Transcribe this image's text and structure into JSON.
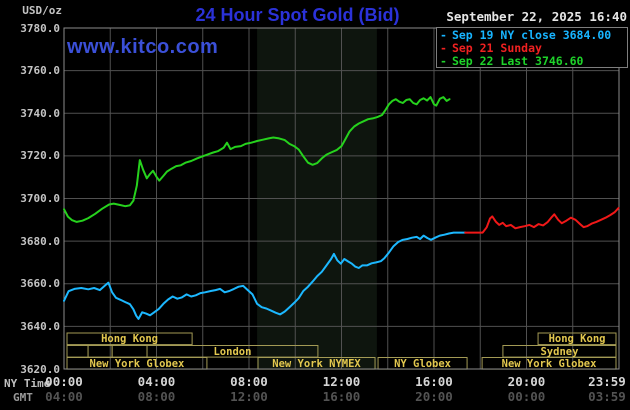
{
  "header": {
    "unit_label": "USD/oz",
    "title": "24 Hour Spot Gold (Bid)",
    "datetime": "September 22, 2025 16:40",
    "watermark": "www.kitco.com"
  },
  "legend": {
    "marker": "-",
    "items": [
      {
        "label": "Sep 19 NY close 3684.00",
        "color": "#17b4ff"
      },
      {
        "label": "Sep 21 Sunday",
        "color": "#f02121"
      },
      {
        "label": "Sep 22 Last 3746.60",
        "color": "#1ed32a"
      }
    ]
  },
  "axes": {
    "ny_axis_name": "NY Time",
    "gmt_axis_name": "GMT",
    "y_labels": [
      "3780.0",
      "3760.0",
      "3740.0",
      "3720.0",
      "3700.0",
      "3680.0",
      "3660.0",
      "3640.0",
      "3620.0"
    ],
    "ticks": [
      {
        "t": 0,
        "ny": "00:00",
        "gmt": "04:00"
      },
      {
        "t": 4,
        "ny": "04:00",
        "gmt": "08:00"
      },
      {
        "t": 8,
        "ny": "08:00",
        "gmt": "12:00"
      },
      {
        "t": 12,
        "ny": "12:00",
        "gmt": "16:00"
      },
      {
        "t": 16,
        "ny": "16:00",
        "gmt": "20:00"
      },
      {
        "t": 20,
        "ny": "20:00",
        "gmt": "00:00"
      },
      {
        "t": 23.983,
        "ny": "23:59",
        "gmt": "03:59"
      }
    ]
  },
  "sessions": {
    "rows": [
      {
        "name": "asia-row",
        "boxes": [
          {
            "label": "Hong Kong",
            "start": 0.13,
            "end": 5.54
          },
          {
            "label": "Hong Kong",
            "start": 20.5,
            "end": 23.87
          }
        ]
      },
      {
        "name": "europe-row",
        "boxes": [
          {
            "label": "",
            "start": 0.13,
            "end": 1.04
          },
          {
            "label": "",
            "start": 1.04,
            "end": 2.08
          },
          {
            "label": "",
            "start": 2.08,
            "end": 3.59
          },
          {
            "label": "London",
            "start": 3.59,
            "end": 10.98
          },
          {
            "label": "Sydney",
            "start": 18.98,
            "end": 23.87
          }
        ]
      },
      {
        "name": "america-row",
        "boxes": [
          {
            "label": "New York Globex",
            "start": 0.13,
            "end": 6.18
          },
          {
            "label": "New York NYMEX",
            "start": 8.39,
            "end": 13.45
          },
          {
            "label": "NY Globex",
            "start": 13.58,
            "end": 17.43
          },
          {
            "label": "New York Globex",
            "start": 18.08,
            "end": 23.87
          }
        ]
      }
    ]
  },
  "chart_data": {
    "type": "line",
    "title": "24 Hour Spot Gold (Bid)",
    "xlabel": "NY Time",
    "ylabel": "USD/oz",
    "x_range_hours": [
      0,
      24
    ],
    "ylim": [
      3620,
      3780
    ],
    "y_step": 20,
    "x_gridline_step_hours": 2,
    "grid": true,
    "legend_position": "top-right",
    "nymex_band": {
      "hours": [
        8.35,
        13.53
      ],
      "color": "#0e150e"
    },
    "series": [
      {
        "name": "Sep 19 NY close",
        "color": "#1cb8ff",
        "points": [
          [
            0,
            3652
          ],
          [
            0.2,
            3656.5
          ],
          [
            0.45,
            3657.6
          ],
          [
            0.75,
            3658
          ],
          [
            1.05,
            3657.4
          ],
          [
            1.3,
            3658
          ],
          [
            1.55,
            3657
          ],
          [
            1.8,
            3659.4
          ],
          [
            1.92,
            3660.5
          ],
          [
            2.08,
            3656
          ],
          [
            2.25,
            3653.4
          ],
          [
            2.45,
            3652.4
          ],
          [
            2.65,
            3651.4
          ],
          [
            2.85,
            3650.4
          ],
          [
            3,
            3648
          ],
          [
            3.12,
            3645
          ],
          [
            3.22,
            3643.5
          ],
          [
            3.38,
            3646.6
          ],
          [
            3.55,
            3646
          ],
          [
            3.72,
            3645.2
          ],
          [
            3.9,
            3646.6
          ],
          [
            4.1,
            3648.2
          ],
          [
            4.3,
            3650.6
          ],
          [
            4.5,
            3652.6
          ],
          [
            4.7,
            3654
          ],
          [
            4.9,
            3653
          ],
          [
            5.1,
            3653.6
          ],
          [
            5.3,
            3655
          ],
          [
            5.5,
            3654
          ],
          [
            5.7,
            3654.6
          ],
          [
            5.9,
            3655.6
          ],
          [
            6.1,
            3656
          ],
          [
            6.35,
            3656.6
          ],
          [
            6.55,
            3657
          ],
          [
            6.75,
            3657.6
          ],
          [
            6.95,
            3656
          ],
          [
            7.15,
            3656.6
          ],
          [
            7.35,
            3657.6
          ],
          [
            7.55,
            3658.6
          ],
          [
            7.75,
            3659
          ],
          [
            7.95,
            3657
          ],
          [
            8.15,
            3655
          ],
          [
            8.35,
            3650.6
          ],
          [
            8.55,
            3649
          ],
          [
            8.75,
            3648.4
          ],
          [
            8.95,
            3647.4
          ],
          [
            9.15,
            3646.4
          ],
          [
            9.35,
            3645.6
          ],
          [
            9.55,
            3647
          ],
          [
            9.75,
            3649
          ],
          [
            9.95,
            3651
          ],
          [
            10.15,
            3653.2
          ],
          [
            10.35,
            3656.6
          ],
          [
            10.55,
            3658.6
          ],
          [
            10.75,
            3661
          ],
          [
            10.95,
            3663.6
          ],
          [
            11.15,
            3665.6
          ],
          [
            11.35,
            3668.6
          ],
          [
            11.55,
            3671.6
          ],
          [
            11.67,
            3674
          ],
          [
            11.82,
            3671
          ],
          [
            11.97,
            3669.4
          ],
          [
            12.12,
            3671.6
          ],
          [
            12.3,
            3670.4
          ],
          [
            12.45,
            3669.4
          ],
          [
            12.6,
            3668
          ],
          [
            12.75,
            3667.4
          ],
          [
            12.9,
            3668.6
          ],
          [
            13.1,
            3668.6
          ],
          [
            13.3,
            3669.6
          ],
          [
            13.5,
            3670
          ],
          [
            13.7,
            3670.6
          ],
          [
            13.85,
            3672
          ],
          [
            14.05,
            3674.6
          ],
          [
            14.25,
            3677.6
          ],
          [
            14.45,
            3679.6
          ],
          [
            14.65,
            3680.6
          ],
          [
            14.85,
            3681
          ],
          [
            15.05,
            3681.6
          ],
          [
            15.25,
            3682
          ],
          [
            15.4,
            3681
          ],
          [
            15.55,
            3682.6
          ],
          [
            15.72,
            3681.4
          ],
          [
            15.87,
            3680.6
          ],
          [
            16.05,
            3681.6
          ],
          [
            16.25,
            3682.6
          ],
          [
            16.45,
            3683
          ],
          [
            16.65,
            3683.6
          ],
          [
            16.85,
            3684
          ],
          [
            17.35,
            3684
          ]
        ]
      },
      {
        "name": "Sep 21 Sunday",
        "color": "#f01818",
        "points": [
          [
            17.35,
            3684
          ],
          [
            18.1,
            3684
          ],
          [
            18.28,
            3686.5
          ],
          [
            18.42,
            3690.6
          ],
          [
            18.52,
            3691.6
          ],
          [
            18.68,
            3689
          ],
          [
            18.82,
            3687.6
          ],
          [
            18.97,
            3688.6
          ],
          [
            19.12,
            3687
          ],
          [
            19.32,
            3687.6
          ],
          [
            19.52,
            3686
          ],
          [
            19.72,
            3686.6
          ],
          [
            19.92,
            3687
          ],
          [
            20.12,
            3687.6
          ],
          [
            20.32,
            3686.6
          ],
          [
            20.52,
            3688
          ],
          [
            20.72,
            3687.4
          ],
          [
            20.92,
            3689
          ],
          [
            21.07,
            3691
          ],
          [
            21.2,
            3692.6
          ],
          [
            21.37,
            3690
          ],
          [
            21.52,
            3688.4
          ],
          [
            21.72,
            3689.6
          ],
          [
            21.92,
            3691
          ],
          [
            22.12,
            3690
          ],
          [
            22.32,
            3688
          ],
          [
            22.47,
            3686.6
          ],
          [
            22.62,
            3687
          ],
          [
            22.82,
            3688.2
          ],
          [
            23.02,
            3689
          ],
          [
            23.22,
            3690
          ],
          [
            23.42,
            3691
          ],
          [
            23.62,
            3692.2
          ],
          [
            23.82,
            3693.6
          ],
          [
            23.98,
            3695.5
          ]
        ]
      },
      {
        "name": "Sep 22 Last",
        "color": "#26d21d",
        "points": [
          [
            0,
            3695
          ],
          [
            0.17,
            3691.5
          ],
          [
            0.35,
            3689.8
          ],
          [
            0.55,
            3689
          ],
          [
            0.8,
            3689.6
          ],
          [
            1.05,
            3690.8
          ],
          [
            1.35,
            3692.8
          ],
          [
            1.65,
            3695.2
          ],
          [
            1.95,
            3697.2
          ],
          [
            2.15,
            3697.6
          ],
          [
            2.4,
            3697
          ],
          [
            2.65,
            3696.4
          ],
          [
            2.85,
            3696.8
          ],
          [
            3,
            3699
          ],
          [
            3.15,
            3706
          ],
          [
            3.28,
            3718
          ],
          [
            3.42,
            3713.5
          ],
          [
            3.58,
            3709.5
          ],
          [
            3.72,
            3711.5
          ],
          [
            3.85,
            3713
          ],
          [
            4,
            3710.2
          ],
          [
            4.12,
            3708.4
          ],
          [
            4.3,
            3710.6
          ],
          [
            4.45,
            3712.6
          ],
          [
            4.65,
            3714
          ],
          [
            4.85,
            3715.2
          ],
          [
            5.05,
            3715.6
          ],
          [
            5.25,
            3716.8
          ],
          [
            5.5,
            3717.6
          ],
          [
            5.75,
            3718.8
          ],
          [
            5.95,
            3719.6
          ],
          [
            6.2,
            3720.6
          ],
          [
            6.45,
            3721.6
          ],
          [
            6.65,
            3722.2
          ],
          [
            6.9,
            3723.8
          ],
          [
            7.05,
            3726.2
          ],
          [
            7.2,
            3723.2
          ],
          [
            7.4,
            3724.2
          ],
          [
            7.65,
            3724.6
          ],
          [
            7.85,
            3725.6
          ],
          [
            8.1,
            3726.2
          ],
          [
            8.35,
            3727
          ],
          [
            8.6,
            3727.6
          ],
          [
            8.85,
            3728.2
          ],
          [
            9.05,
            3728.6
          ],
          [
            9.3,
            3728.2
          ],
          [
            9.55,
            3727.4
          ],
          [
            9.75,
            3725.6
          ],
          [
            9.95,
            3724.6
          ],
          [
            10.15,
            3723
          ],
          [
            10.35,
            3719.8
          ],
          [
            10.55,
            3716.8
          ],
          [
            10.75,
            3715.8
          ],
          [
            10.95,
            3716.6
          ],
          [
            11.15,
            3718.8
          ],
          [
            11.35,
            3720.6
          ],
          [
            11.55,
            3721.6
          ],
          [
            11.8,
            3722.8
          ],
          [
            12,
            3724.6
          ],
          [
            12.15,
            3727.5
          ],
          [
            12.35,
            3731.5
          ],
          [
            12.55,
            3733.8
          ],
          [
            12.75,
            3735.2
          ],
          [
            12.95,
            3736.2
          ],
          [
            13.15,
            3737.2
          ],
          [
            13.35,
            3737.6
          ],
          [
            13.55,
            3738.2
          ],
          [
            13.75,
            3739.2
          ],
          [
            13.9,
            3741.5
          ],
          [
            14.05,
            3744.2
          ],
          [
            14.2,
            3745.8
          ],
          [
            14.35,
            3746.6
          ],
          [
            14.5,
            3745.4
          ],
          [
            14.65,
            3744.8
          ],
          [
            14.8,
            3746.2
          ],
          [
            14.95,
            3746.6
          ],
          [
            15.1,
            3744.8
          ],
          [
            15.25,
            3744.2
          ],
          [
            15.4,
            3746.2
          ],
          [
            15.55,
            3747
          ],
          [
            15.7,
            3746
          ],
          [
            15.85,
            3747.6
          ],
          [
            16,
            3744.2
          ],
          [
            16.1,
            3743.6
          ],
          [
            16.25,
            3746.8
          ],
          [
            16.4,
            3747.6
          ],
          [
            16.55,
            3745.8
          ],
          [
            16.67,
            3746.6
          ]
        ]
      }
    ]
  }
}
